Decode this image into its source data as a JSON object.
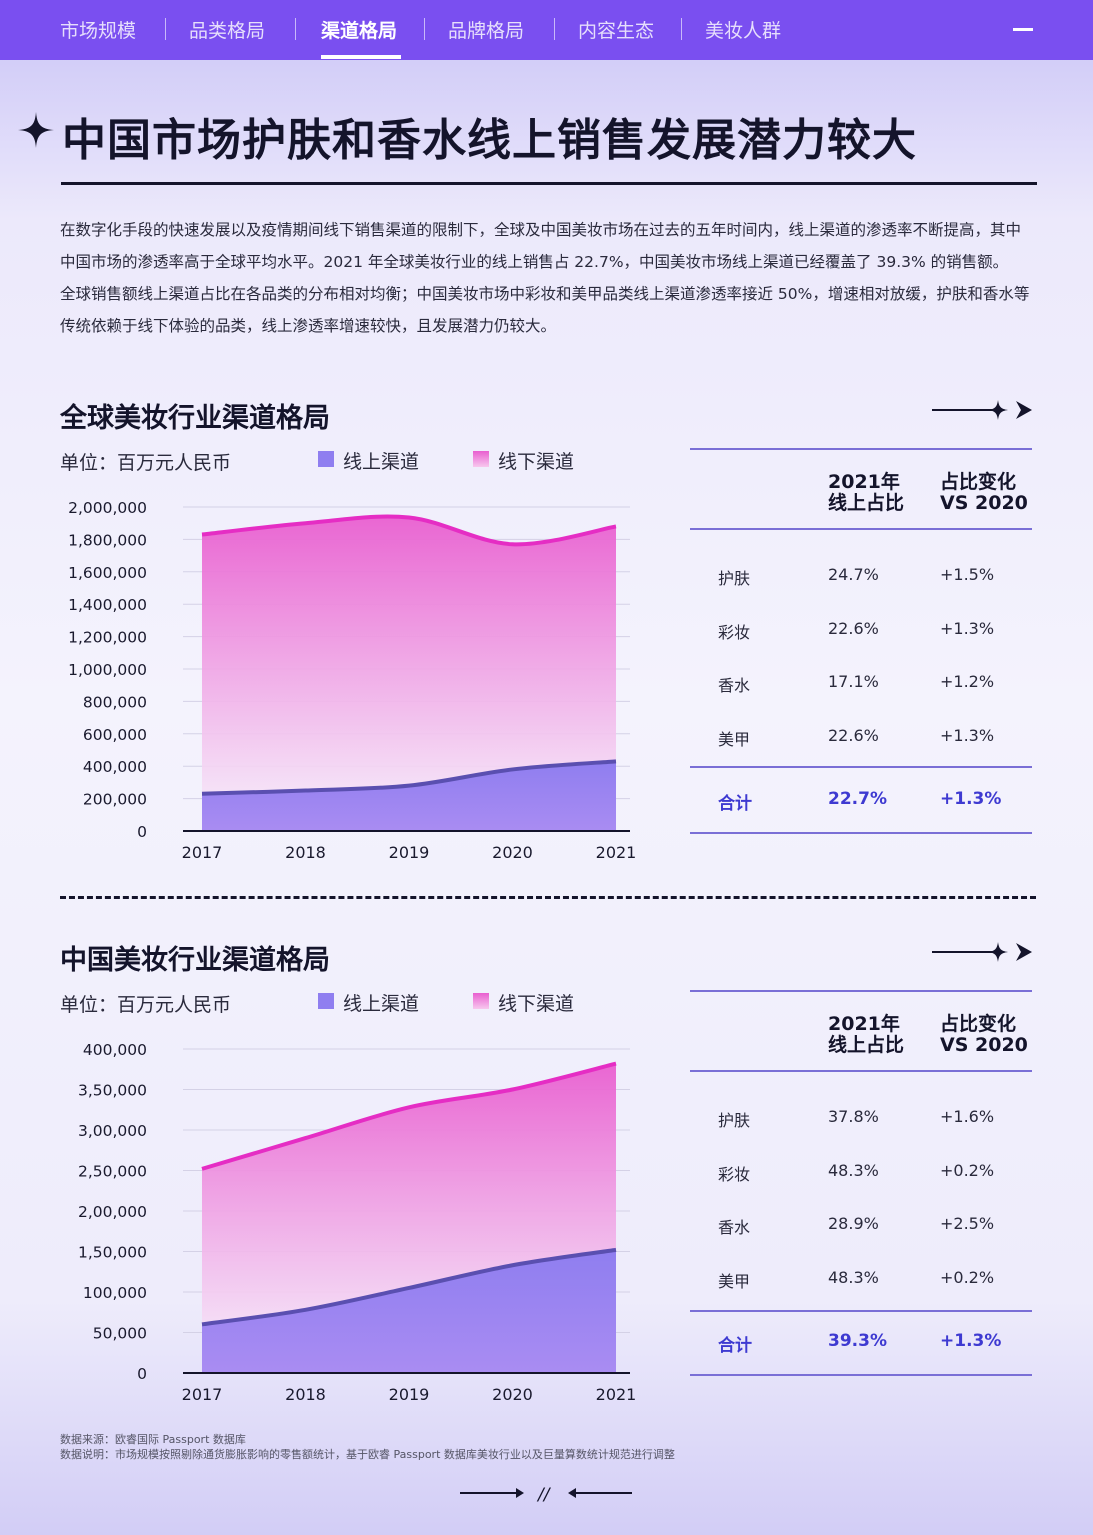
{
  "nav": {
    "items": [
      "市场规模",
      "品类格局",
      "渠道格局",
      "品牌格局",
      "内容生态",
      "美妆人群"
    ],
    "active_index": 2
  },
  "title": "中国市场护肤和香水线上销售发展潜力较大",
  "intro": {
    "p1": "在数字化手段的快速发展以及疫情期间线下销售渠道的限制下，全球及中国美妆市场在过去的五年时间内，线上渠道的渗透率不断提高，其中中国市场的渗透率高于全球平均水平。2021 年全球美妆行业的线上销售占 22.7%，中国美妆市场线上渠道已经覆盖了 39.3% 的销售额。",
    "p2": "全球销售额线上渠道占比在各品类的分布相对均衡；中国美妆市场中彩妆和美甲品类线上渠道渗透率接近 50%，增速相对放缓，护肤和香水等传统依赖于线下体验的品类，线上渗透率增速较快，且发展潜力仍较大。"
  },
  "colors": {
    "nav": "#7a4ff0",
    "online": "#8f7ef0",
    "online_line": "#5a4fb0",
    "offline": "#e95fd0",
    "offline_line": "#e52dc4",
    "accent_text": "#3e3ad1"
  },
  "global": {
    "section_title": "全球美妆行业渠道格局",
    "unit": "单位：百万元人民币",
    "legend_online": "线上渠道",
    "legend_offline": "线下渠道",
    "table": {
      "header_col1": [
        "2021年",
        "线上占比"
      ],
      "header_col2": [
        "占比变化",
        "VS 2020"
      ],
      "rows": [
        {
          "cat": "护肤",
          "share": "24.7%",
          "change": "+1.5%"
        },
        {
          "cat": "彩妆",
          "share": "22.6%",
          "change": "+1.3%"
        },
        {
          "cat": "香水",
          "share": "17.1%",
          "change": "+1.2%"
        },
        {
          "cat": "美甲",
          "share": "22.6%",
          "change": "+1.3%"
        }
      ],
      "total": {
        "cat": "合计",
        "share": "22.7%",
        "change": "+1.3%"
      }
    }
  },
  "china": {
    "section_title": "中国美妆行业渠道格局",
    "unit": "单位：百万元人民币",
    "legend_online": "线上渠道",
    "legend_offline": "线下渠道",
    "table": {
      "header_col1": [
        "2021年",
        "线上占比"
      ],
      "header_col2": [
        "占比变化",
        "VS 2020"
      ],
      "rows": [
        {
          "cat": "护肤",
          "share": "37.8%",
          "change": "+1.6%"
        },
        {
          "cat": "彩妆",
          "share": "48.3%",
          "change": "+0.2%"
        },
        {
          "cat": "香水",
          "share": "28.9%",
          "change": "+2.5%"
        },
        {
          "cat": "美甲",
          "share": "48.3%",
          "change": "+0.2%"
        }
      ],
      "total": {
        "cat": "合计",
        "share": "39.3%",
        "change": "+1.3%"
      }
    }
  },
  "chart_data": [
    {
      "type": "area",
      "x": [
        "2017",
        "2018",
        "2019",
        "2020",
        "2021"
      ],
      "yticks": [
        "0",
        "200,000",
        "400,000",
        "600,000",
        "800,000",
        "1,000,000",
        "1,200,000",
        "1,400,000",
        "1,600,000",
        "1,800,000",
        "2,000,000"
      ],
      "ylim": [
        0,
        2000000
      ],
      "series": [
        {
          "name": "线下渠道",
          "values": [
            1830000,
            1900000,
            1935000,
            1770000,
            1880000
          ]
        },
        {
          "name": "线上渠道",
          "values": [
            230000,
            250000,
            280000,
            380000,
            430000
          ]
        }
      ],
      "grid": true,
      "legend": "top"
    },
    {
      "type": "area",
      "x": [
        "2017",
        "2018",
        "2019",
        "2020",
        "2021"
      ],
      "yticks": [
        "0",
        "50,000",
        "100,000",
        "1,50,000",
        "2,00,000",
        "2,50,000",
        "3,00,000",
        "3,50,000",
        "400,000"
      ],
      "ylim": [
        0,
        400000
      ],
      "series": [
        {
          "name": "线下渠道",
          "values": [
            252000,
            290000,
            328000,
            350000,
            382000
          ]
        },
        {
          "name": "线上渠道",
          "values": [
            60000,
            78000,
            105000,
            133000,
            152000
          ]
        }
      ],
      "grid": true,
      "legend": "top"
    }
  ],
  "source": {
    "line1": "数据来源：欧睿国际 Passport 数据库",
    "line2": "数据说明：市场规模按照剔除通货膨胀影响的零售额统计，基于欧睿 Passport 数据库美妆行业以及巨量算数统计规范进行调整"
  },
  "footer_mark": "//"
}
